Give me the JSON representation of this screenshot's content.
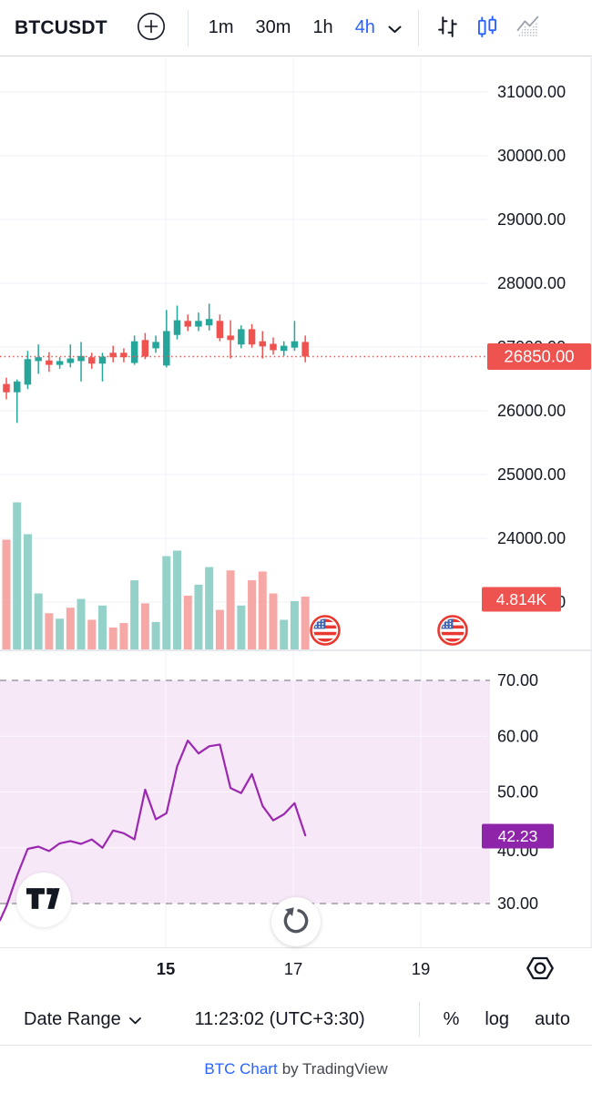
{
  "header": {
    "symbol": "BTCUSDT",
    "timeframes": [
      "1m",
      "30m",
      "1h",
      "4h"
    ],
    "active_timeframe": "4h"
  },
  "bottom_toolbar": {
    "date_range": "Date Range",
    "clock": "11:23:02 (UTC+3:30)",
    "percent": "%",
    "log": "log",
    "auto": "auto"
  },
  "footer": {
    "link": "BTC Chart",
    "rest": "by TradingView"
  },
  "colors": {
    "up": "#26a69a",
    "down": "#ef5350",
    "vol_up": "#94d1c9",
    "vol_down": "#f5a8a5",
    "accent": "#2962ff",
    "text": "#131722",
    "grid": "#eef1f7",
    "pane_border": "#dfe2ea",
    "rsi_line": "#9c27b0",
    "rsi_label_bg": "#8e24aa",
    "rsi_band": "#f6e8f7",
    "band_dash": "#888b93",
    "price_label_bg": "#ef5350",
    "flag_ring": "#e8382f",
    "flag_blue": "#4064b0",
    "muted_icon": "#51555e"
  },
  "chart_data": {
    "type": "candlestick",
    "symbol": "BTCUSDT",
    "interval": "4h",
    "price_ticks": [
      "31000.00",
      "30000.00",
      "29000.00",
      "28000.00",
      "27000.00",
      "26000.00",
      "25000.00",
      "24000.00",
      "23000.00"
    ],
    "last_price_label": "26850.00",
    "volume_label": "4.814K",
    "rsi_ticks": [
      "70.00",
      "60.00",
      "50.00",
      "40.00",
      "30.00"
    ],
    "rsi_last_label": "42.23",
    "rsi_band": [
      30,
      70
    ],
    "time_ticks": [
      "15",
      "17",
      "19"
    ],
    "bold_time_tick": "15",
    "candles": [
      [
        26420,
        26520,
        26180,
        26290
      ],
      [
        26290,
        26490,
        25810,
        26460
      ],
      [
        26410,
        26940,
        26340,
        26810
      ],
      [
        26780,
        27040,
        26580,
        26840
      ],
      [
        26790,
        26920,
        26610,
        26720
      ],
      [
        26720,
        26840,
        26660,
        26780
      ],
      [
        26750,
        27040,
        26680,
        26820
      ],
      [
        26780,
        27080,
        26460,
        26860
      ],
      [
        26840,
        26910,
        26660,
        26740
      ],
      [
        26740,
        26910,
        26460,
        26850
      ],
      [
        26910,
        27020,
        26760,
        26840
      ],
      [
        26910,
        26980,
        26760,
        26840
      ],
      [
        26750,
        27180,
        26720,
        27090
      ],
      [
        27110,
        27220,
        26810,
        26850
      ],
      [
        26980,
        27180,
        26910,
        27080
      ],
      [
        26710,
        27580,
        26680,
        27250
      ],
      [
        27190,
        27650,
        27120,
        27420
      ],
      [
        27410,
        27510,
        27250,
        27320
      ],
      [
        27320,
        27540,
        27250,
        27410
      ],
      [
        27340,
        27680,
        27260,
        27440
      ],
      [
        27410,
        27510,
        27090,
        27140
      ],
      [
        27180,
        27420,
        26820,
        27110
      ],
      [
        27040,
        27340,
        26980,
        27280
      ],
      [
        27280,
        27360,
        26990,
        27040
      ],
      [
        27090,
        27250,
        26820,
        27010
      ],
      [
        27050,
        27150,
        26880,
        26950
      ],
      [
        26940,
        27090,
        26860,
        27020
      ],
      [
        26990,
        27410,
        26940,
        27090
      ],
      [
        27080,
        27180,
        26760,
        26850
      ]
    ],
    "volumes_k": [
      10.0,
      13.4,
      10.5,
      5.1,
      3.3,
      2.8,
      3.8,
      4.6,
      2.7,
      4.0,
      2.0,
      2.4,
      6.3,
      4.2,
      2.5,
      8.5,
      9.0,
      4.9,
      5.9,
      7.5,
      3.6,
      7.2,
      4.0,
      6.3,
      7.1,
      5.1,
      2.7,
      4.4,
      4.81
    ],
    "volume_dirs": [
      "d",
      "u",
      "u",
      "u",
      "d",
      "u",
      "d",
      "u",
      "d",
      "u",
      "d",
      "d",
      "u",
      "d",
      "u",
      "u",
      "u",
      "d",
      "u",
      "u",
      "d",
      "d",
      "u",
      "d",
      "d",
      "d",
      "u",
      "u",
      "d"
    ],
    "rsi": [
      [
        -0.6,
        27.0
      ],
      [
        0,
        29.5
      ],
      [
        1,
        35.0
      ],
      [
        2,
        39.8
      ],
      [
        3,
        40.2
      ],
      [
        4,
        39.4
      ],
      [
        5,
        40.8
      ],
      [
        6,
        41.2
      ],
      [
        7,
        40.7
      ],
      [
        8,
        41.5
      ],
      [
        9,
        40.0
      ],
      [
        10,
        43.1
      ],
      [
        11,
        42.6
      ],
      [
        12,
        41.5
      ],
      [
        13,
        50.4
      ],
      [
        14,
        45.1
      ],
      [
        15,
        46.2
      ],
      [
        16,
        54.6
      ],
      [
        17,
        59.2
      ],
      [
        18,
        56.9
      ],
      [
        19,
        58.2
      ],
      [
        20,
        58.5
      ],
      [
        21,
        50.7
      ],
      [
        22,
        49.8
      ],
      [
        23,
        53.2
      ],
      [
        24,
        47.5
      ],
      [
        25,
        44.9
      ],
      [
        26,
        46.0
      ],
      [
        27,
        48.0
      ],
      [
        28,
        42.23
      ]
    ],
    "event_flag_positions": [
      357,
      497
    ]
  }
}
